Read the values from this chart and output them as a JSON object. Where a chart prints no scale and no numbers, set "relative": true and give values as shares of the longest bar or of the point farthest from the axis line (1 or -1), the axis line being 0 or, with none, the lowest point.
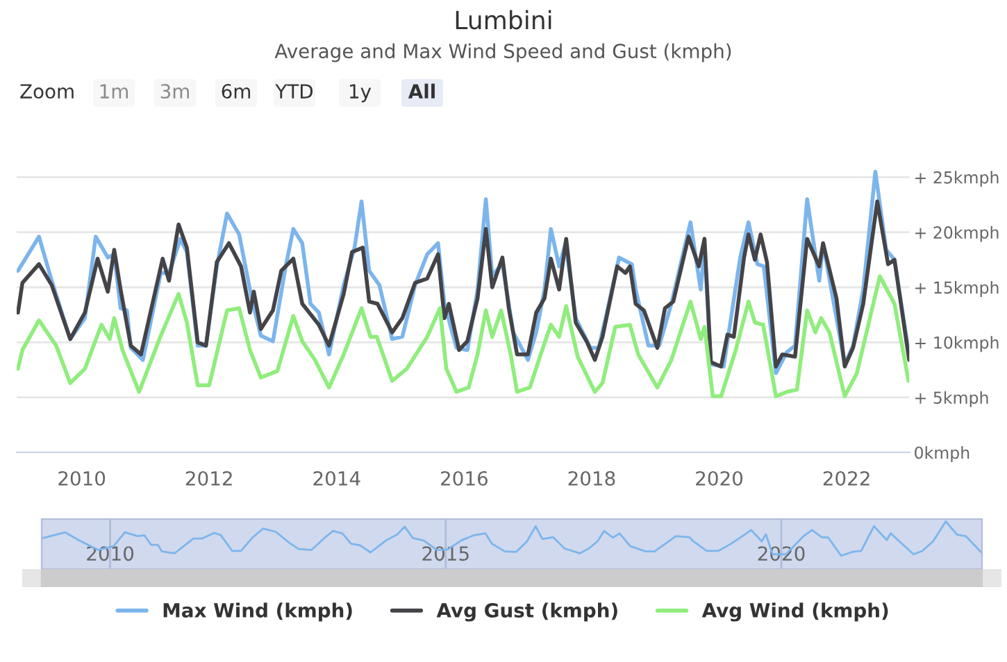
{
  "chart_data": [
    {
      "type": "line",
      "title": "Lumbini",
      "subtitle": "Average and Max Wind Speed and Gust (kmph)",
      "annotations": [
        "Zoom",
        "1m",
        "3m",
        "6m",
        "YTD",
        "1y",
        "All"
      ],
      "series": [
        {
          "name": "Max Wind (kmph)",
          "color": "#7cb5ec",
          "x": [
            2009.0,
            2009.33,
            2009.53,
            2009.82,
            2010.05,
            2010.22,
            2010.41,
            2010.51,
            2010.61,
            2010.71,
            2010.77,
            2010.96,
            2011.24,
            2011.37,
            2011.55,
            2011.65,
            2011.82,
            2011.95,
            2012.12,
            2012.28,
            2012.47,
            2012.67,
            2012.81,
            2013.0,
            2013.2,
            2013.32,
            2013.46,
            2013.59,
            2013.72,
            2013.88,
            2014.11,
            2014.28,
            2014.39,
            2014.51,
            2014.67,
            2014.87,
            2015.03,
            2015.23,
            2015.42,
            2015.59,
            2015.69,
            2015.88,
            2016.05,
            2016.21,
            2016.34,
            2016.44,
            2016.6,
            2016.77,
            2017.0,
            2017.13,
            2017.26,
            2017.36,
            2017.49,
            2017.59,
            2017.75,
            2017.98,
            2018.11,
            2018.25,
            2018.43,
            2018.63,
            2018.69,
            2018.89,
            2019.06,
            2019.25,
            2019.42,
            2019.55,
            2019.71,
            2019.77,
            2019.87,
            2020.07,
            2020.33,
            2020.46,
            2020.6,
            2020.7,
            2020.89,
            2021.06,
            2021.19,
            2021.38,
            2021.57,
            2021.63,
            2021.76,
            2021.97,
            2022.1,
            2022.26,
            2022.45,
            2022.62,
            2022.75,
            2022.98
          ],
          "values": [
            16.5,
            19.6,
            15.6,
            10.3,
            12.2,
            19.6,
            17.7,
            18,
            13.1,
            12.9,
            9.5,
            8.4,
            16.3,
            16.3,
            19.4,
            18.2,
            9.7,
            9.7,
            16.9,
            21.7,
            19.8,
            13.9,
            10.6,
            10.1,
            16.9,
            20.3,
            19,
            13.5,
            12.7,
            8.9,
            15.2,
            18.6,
            22.8,
            16.5,
            15.2,
            10.3,
            10.5,
            15.2,
            18,
            19,
            13.5,
            9.5,
            9.3,
            14.8,
            23.0,
            16.1,
            17.1,
            10.9,
            8.4,
            10.9,
            14.8,
            20.3,
            16.9,
            19,
            12.2,
            9.5,
            9.5,
            13,
            17.7,
            17.1,
            14.8,
            9.7,
            9.7,
            13.5,
            17.7,
            20.9,
            14.8,
            18.6,
            8.0,
            7.8,
            17.7,
            20.9,
            17.1,
            16.9,
            7.2,
            9.1,
            9.7,
            23,
            15.6,
            19,
            14.8,
            8,
            9.7,
            14.8,
            25.5,
            18.4,
            17.5,
            8.9
          ]
        },
        {
          "name": "Avg Gust (kmph)",
          "color": "#434348",
          "x": [
            2009.0,
            2009.07,
            2009.33,
            2009.53,
            2009.82,
            2010.05,
            2010.25,
            2010.41,
            2010.51,
            2010.61,
            2010.77,
            2010.93,
            2011.27,
            2011.37,
            2011.52,
            2011.65,
            2011.82,
            2011.95,
            2012.12,
            2012.31,
            2012.5,
            2012.64,
            2012.7,
            2012.81,
            2013.0,
            2013.13,
            2013.32,
            2013.46,
            2013.72,
            2013.88,
            2014.11,
            2014.24,
            2014.41,
            2014.51,
            2014.64,
            2014.87,
            2015.03,
            2015.23,
            2015.42,
            2015.59,
            2015.69,
            2015.76,
            2015.92,
            2016.05,
            2016.21,
            2016.34,
            2016.44,
            2016.6,
            2016.7,
            2016.83,
            2017.0,
            2017.13,
            2017.26,
            2017.36,
            2017.49,
            2017.6,
            2017.75,
            2017.92,
            2018.05,
            2018.17,
            2018.4,
            2018.53,
            2018.6,
            2018.69,
            2018.82,
            2019.03,
            2019.15,
            2019.28,
            2019.52,
            2019.68,
            2019.77,
            2019.87,
            2020.03,
            2020.13,
            2020.23,
            2020.39,
            2020.46,
            2020.56,
            2020.65,
            2020.75,
            2020.89,
            2020.99,
            2021.19,
            2021.38,
            2021.57,
            2021.63,
            2021.84,
            2021.97,
            2022.1,
            2022.26,
            2022.48,
            2022.65,
            2022.75,
            2022.98
          ],
          "values": [
            12.7,
            15.4,
            17.1,
            15.2,
            10.3,
            12.7,
            17.6,
            14.6,
            18.4,
            14.8,
            9.7,
            8.9,
            17.6,
            15.6,
            20.7,
            18.6,
            10.0,
            9.7,
            17.3,
            19,
            16.9,
            12.7,
            14.6,
            11.2,
            12.9,
            16.5,
            17.6,
            13.5,
            11.6,
            9.7,
            14.4,
            18.2,
            18.6,
            13.7,
            13.5,
            10.9,
            12.2,
            15.4,
            15.8,
            18,
            12.2,
            13.5,
            9.3,
            10.1,
            14,
            20.3,
            15,
            17.7,
            13.1,
            8.9,
            8.9,
            12.7,
            14,
            17.6,
            14.8,
            19.4,
            11.8,
            10.1,
            8.4,
            10.5,
            16.9,
            16.3,
            16.9,
            13.5,
            12.9,
            9.5,
            13.1,
            13.7,
            19.6,
            16.9,
            19.4,
            8.2,
            7.8,
            10.7,
            10.5,
            17.7,
            19.8,
            17.5,
            19.8,
            17.3,
            7.8,
            8.9,
            8.7,
            19.4,
            16.9,
            19,
            14,
            7.8,
            9.5,
            13.5,
            22.8,
            17.1,
            17.5,
            8.4
          ]
        },
        {
          "name": "Avg Wind (kmph)",
          "color": "#90ed7d",
          "x": [
            2009.0,
            2009.07,
            2009.33,
            2009.6,
            2009.82,
            2010.05,
            2010.31,
            2010.44,
            2010.51,
            2010.64,
            2010.9,
            2011.24,
            2011.52,
            2011.65,
            2011.82,
            2012.0,
            2012.28,
            2012.47,
            2012.64,
            2012.81,
            2013.07,
            2013.32,
            2013.46,
            2013.66,
            2013.88,
            2014.11,
            2014.39,
            2014.53,
            2014.63,
            2014.87,
            2015.1,
            2015.42,
            2015.62,
            2015.72,
            2015.88,
            2016.07,
            2016.21,
            2016.34,
            2016.44,
            2016.58,
            2016.73,
            2016.83,
            2017.03,
            2017.2,
            2017.36,
            2017.49,
            2017.6,
            2017.78,
            2018.05,
            2018.17,
            2018.37,
            2018.6,
            2018.73,
            2019.03,
            2019.25,
            2019.38,
            2019.55,
            2019.71,
            2019.77,
            2019.9,
            2020.03,
            2020.26,
            2020.46,
            2020.56,
            2020.69,
            2020.89,
            2021.06,
            2021.22,
            2021.38,
            2021.51,
            2021.6,
            2021.73,
            2021.97,
            2022.16,
            2022.52,
            2022.75,
            2022.97
          ],
          "values": [
            7.6,
            9.3,
            12,
            9.7,
            6.3,
            7.6,
            11.6,
            10.3,
            12.2,
            9.3,
            5.5,
            10.6,
            14.4,
            11.8,
            6.1,
            6.1,
            12.9,
            13.1,
            9.3,
            6.8,
            7.4,
            12.4,
            10.1,
            8.4,
            5.9,
            8.9,
            13.1,
            10.5,
            10.5,
            6.5,
            7.6,
            10.5,
            13.1,
            7.6,
            5.5,
            5.9,
            8.9,
            12.9,
            10.5,
            12.9,
            8.9,
            5.5,
            5.9,
            8.9,
            11.6,
            10.5,
            13.3,
            8.7,
            5.5,
            6.3,
            11.4,
            11.6,
            8.9,
            5.9,
            8.4,
            10.7,
            13.7,
            10.3,
            11.4,
            5.1,
            5.1,
            9.3,
            13.7,
            11.8,
            11.6,
            5.1,
            5.5,
            5.7,
            12.9,
            10.9,
            12.2,
            10.9,
            5.1,
            7.2,
            16.0,
            13.5,
            6.5
          ]
        }
      ],
      "xlim": [
        2008.98,
        2022.99
      ],
      "xticks": [
        {
          "value": 2010,
          "label": "2010"
        },
        {
          "value": 2012,
          "label": "2012"
        },
        {
          "value": 2014,
          "label": "2014"
        },
        {
          "value": 2016,
          "label": "2016"
        },
        {
          "value": 2018,
          "label": "2018"
        },
        {
          "value": 2020,
          "label": "2020"
        },
        {
          "value": 2022,
          "label": "2022"
        }
      ],
      "ylim": [
        0,
        30
      ],
      "yticks": [
        {
          "value": 0,
          "label": "0kmph"
        },
        {
          "value": 5,
          "label": "+ 5kmph"
        },
        {
          "value": 10,
          "label": "+ 10kmph"
        },
        {
          "value": 15,
          "label": "+ 15kmph"
        },
        {
          "value": 20,
          "label": "+ 20kmph"
        },
        {
          "value": 25,
          "label": "+ 25kmph"
        }
      ],
      "grid": "y",
      "legend": "bottom",
      "line_style": "solid",
      "marker": "none"
    },
    {
      "type": "line",
      "relative": true,
      "series": [
        {
          "color": "#7cb5ec",
          "x": [
            2009.0,
            2009.33,
            2009.53,
            2009.82,
            2010.05,
            2010.22,
            2010.41,
            2010.51,
            2010.61,
            2010.71,
            2010.77,
            2010.96,
            2011.24,
            2011.37,
            2011.55,
            2011.65,
            2011.82,
            2011.95,
            2012.12,
            2012.28,
            2012.47,
            2012.67,
            2012.81,
            2013.0,
            2013.2,
            2013.32,
            2013.46,
            2013.59,
            2013.72,
            2013.88,
            2014.11,
            2014.28,
            2014.39,
            2014.51,
            2014.67,
            2014.87,
            2015.03,
            2015.23,
            2015.42,
            2015.59,
            2015.69,
            2015.88,
            2016.05,
            2016.21,
            2016.34,
            2016.44,
            2016.6,
            2016.77,
            2017.0,
            2017.13,
            2017.26,
            2017.36,
            2017.49,
            2017.59,
            2017.75,
            2017.98,
            2018.11,
            2018.25,
            2018.43,
            2018.63,
            2018.69,
            2018.89,
            2019.06,
            2019.25,
            2019.42,
            2019.55,
            2019.71,
            2019.77,
            2019.87,
            2020.07,
            2020.33,
            2020.46,
            2020.6,
            2020.7,
            2020.89,
            2021.06,
            2021.19,
            2021.38,
            2021.57,
            2021.63,
            2021.76,
            2021.97,
            2022.1,
            2022.26,
            2022.45,
            2022.62,
            2022.75,
            2022.98
          ],
          "values": [
            0.65,
            0.77,
            0.61,
            0.4,
            0.48,
            0.77,
            0.69,
            0.71,
            0.51,
            0.51,
            0.37,
            0.33,
            0.64,
            0.64,
            0.76,
            0.71,
            0.38,
            0.38,
            0.66,
            0.85,
            0.78,
            0.55,
            0.42,
            0.4,
            0.66,
            0.8,
            0.75,
            0.53,
            0.5,
            0.35,
            0.6,
            0.73,
            0.89,
            0.65,
            0.6,
            0.4,
            0.41,
            0.6,
            0.71,
            0.75,
            0.53,
            0.37,
            0.36,
            0.58,
            0.9,
            0.63,
            0.67,
            0.43,
            0.33,
            0.43,
            0.58,
            0.8,
            0.66,
            0.75,
            0.48,
            0.37,
            0.37,
            0.51,
            0.69,
            0.67,
            0.58,
            0.38,
            0.38,
            0.53,
            0.69,
            0.82,
            0.58,
            0.73,
            0.31,
            0.31,
            0.69,
            0.82,
            0.67,
            0.66,
            0.28,
            0.36,
            0.38,
            0.9,
            0.61,
            0.75,
            0.58,
            0.31,
            0.38,
            0.58,
            1,
            0.72,
            0.69,
            0.35
          ]
        }
      ],
      "xlim": [
        2008.98,
        2022.99
      ],
      "xticks": [
        2010,
        2015,
        2020
      ],
      "tick_labels": "x",
      "grid": "x"
    }
  ]
}
